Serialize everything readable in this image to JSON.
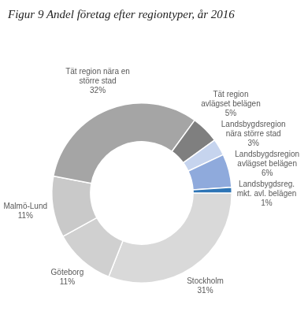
{
  "chart_data": {
    "type": "doughnut",
    "title": "Figur 9 Andel företag efter regiontyper, år 2016",
    "categories": [
      "Stockholm",
      "Göteborg",
      "Malmö-Lund",
      "Tät region nära en större stad",
      "Tät region avlägset belägen",
      "Landsbygdsregion nära större stad",
      "Landsbygdsregion avlägset belägen",
      "Landsbygdsreg. mkt. avl. belägen"
    ],
    "values": [
      31,
      11,
      11,
      32,
      5,
      3,
      6,
      1
    ],
    "value_labels": [
      "31%",
      "11%",
      "11%",
      "32%",
      "5%",
      "3%",
      "6%",
      "1%"
    ],
    "colors": [
      "#d9d9d9",
      "#d0d0d0",
      "#c9c9c9",
      "#a5a5a5",
      "#7f7f7f",
      "#c6d4ee",
      "#8faadc",
      "#2e75b6"
    ],
    "data_labels": true
  }
}
